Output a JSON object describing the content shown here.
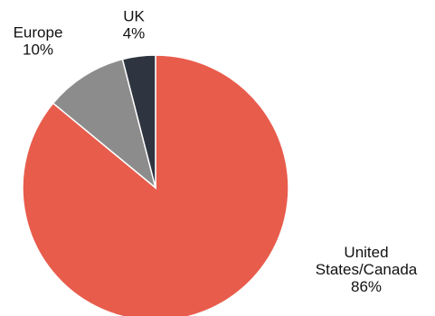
{
  "chart_data": {
    "type": "pie",
    "slices": [
      {
        "label": "United States/Canada",
        "label_lines": [
          "United",
          "States/Canada"
        ],
        "value_text": "86%",
        "value": 86,
        "color": "#e85c4c"
      },
      {
        "label": "Europe",
        "label_lines": [
          "Europe"
        ],
        "value_text": "10%",
        "value": 10,
        "color": "#8c8c8c"
      },
      {
        "label": "UK",
        "label_lines": [
          "UK"
        ],
        "value_text": "4%",
        "value": 4,
        "color": "#2e3540"
      }
    ],
    "start": "12 o'clock",
    "direction": "clockwise",
    "legend": "none (labels outside slices)"
  }
}
